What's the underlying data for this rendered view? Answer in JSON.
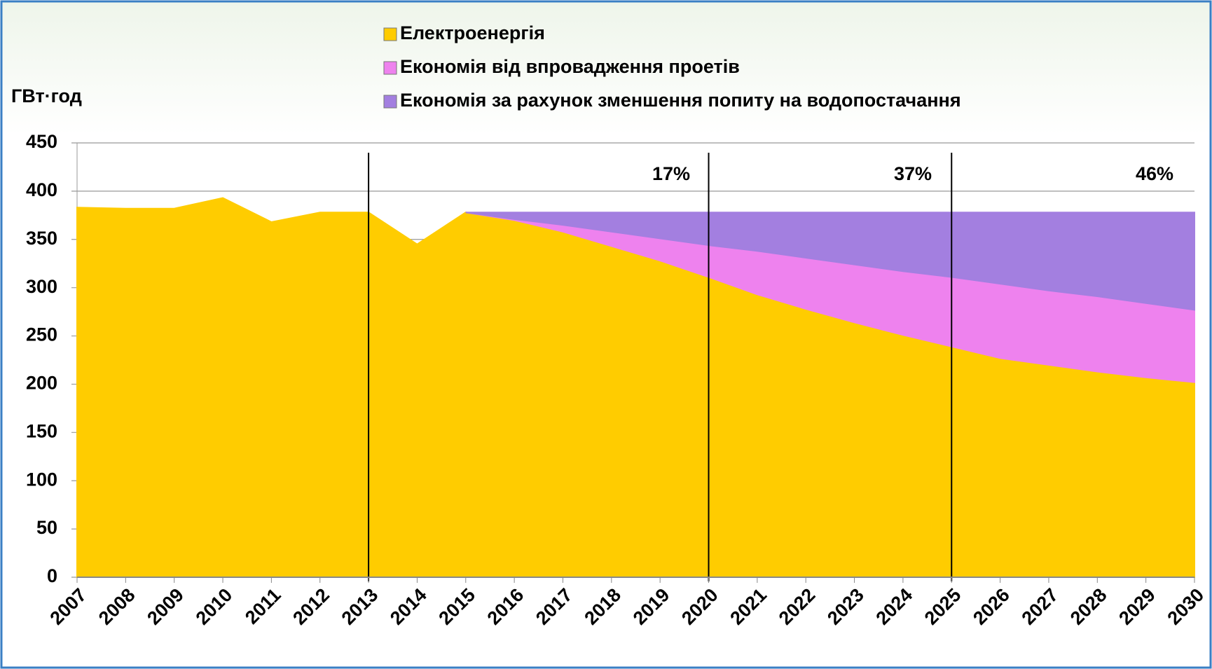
{
  "chart_data": {
    "type": "stacked_area",
    "y_label": "ГВт·год",
    "categories": [
      "2007",
      "2008",
      "2009",
      "2010",
      "2011",
      "2012",
      "2013",
      "2014",
      "2015",
      "2016",
      "2017",
      "2018",
      "2019",
      "2020",
      "2021",
      "2022",
      "2023",
      "2024",
      "2025",
      "2026",
      "2027",
      "2028",
      "2029",
      "2030"
    ],
    "series": [
      {
        "name": "Електроенергія",
        "color": "#ffcc00",
        "values": [
          383,
          382,
          382,
          393,
          368,
          378,
          378,
          345,
          378,
          370,
          358,
          343,
          328,
          311,
          293,
          278,
          264,
          251,
          239,
          227,
          220,
          213,
          207,
          202
        ]
      },
      {
        "name": "Економія від впровадження проетів",
        "color": "#ee82ee",
        "values": [
          null,
          null,
          null,
          null,
          null,
          null,
          null,
          null,
          0,
          1,
          7,
          15,
          23,
          33,
          45,
          53,
          60,
          66,
          72,
          77,
          77,
          78,
          77,
          75
        ]
      },
      {
        "name": "Економія за рахунок зменшення попиту на водопостачання",
        "color": "#a37fe0",
        "values": [
          null,
          null,
          null,
          null,
          null,
          null,
          null,
          null,
          0,
          7,
          13,
          20,
          27,
          34,
          40,
          47,
          54,
          61,
          67,
          74,
          81,
          87,
          94,
          101
        ]
      }
    ],
    "annotations": [
      "17%",
      "37%",
      "46%"
    ],
    "ylim": [
      0,
      450
    ],
    "yticks": [
      0,
      50,
      100,
      150,
      200,
      250,
      300,
      350,
      400,
      450
    ],
    "grid": true
  }
}
